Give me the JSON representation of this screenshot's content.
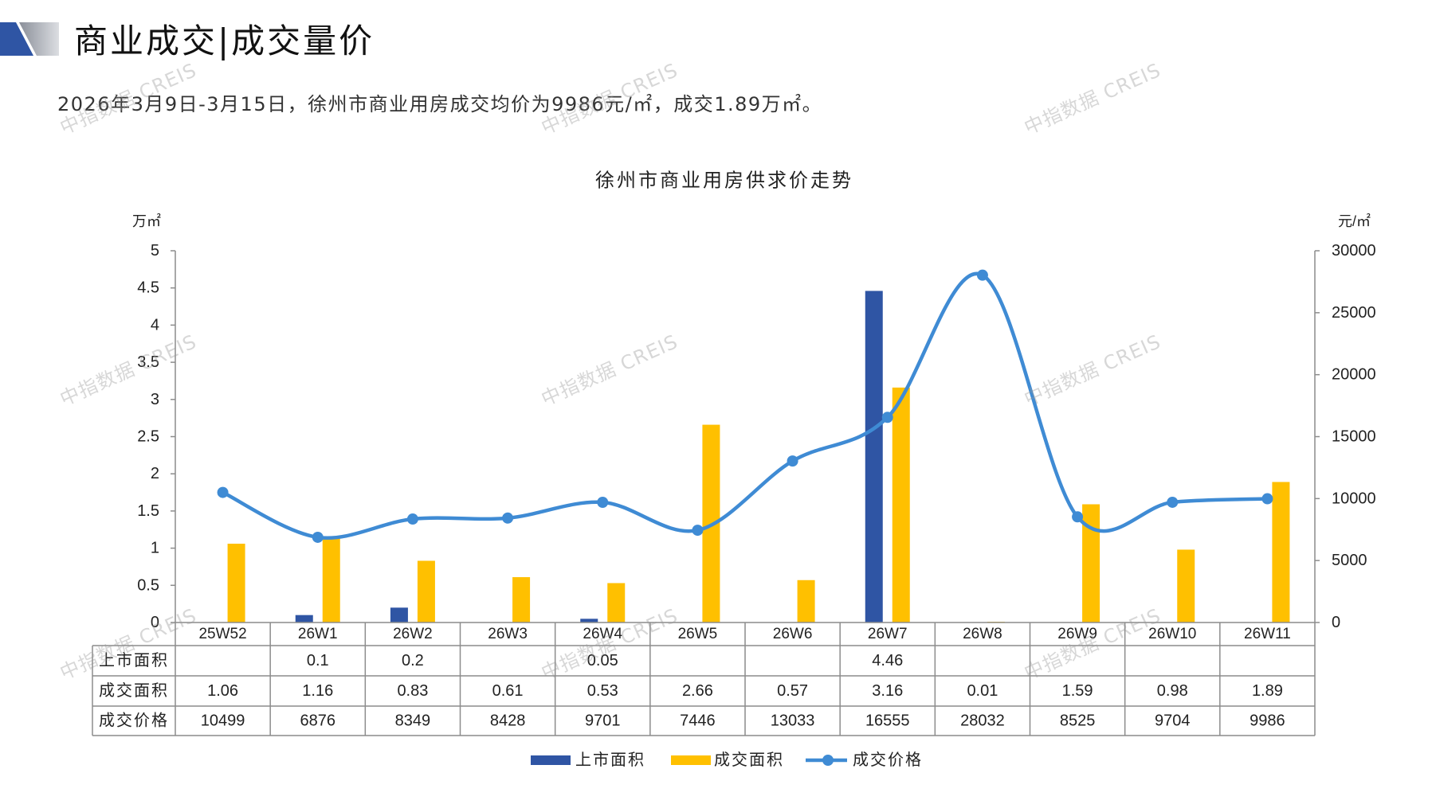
{
  "header": {
    "title": "商业成交|成交量价",
    "subtitle": "2026年3月9日-3月15日，徐州市商业用房成交均价为9986元/㎡，成交1.89万㎡。"
  },
  "watermark": "中指数据 CREIS",
  "chart_data": {
    "type": "bar",
    "title": "徐州市商业用房供求价走势",
    "ylabel": "万㎡",
    "y2label": "元/㎡",
    "ylim": [
      0,
      5
    ],
    "y2lim": [
      0,
      30000
    ],
    "y_ticks": [
      0,
      0.5,
      1,
      1.5,
      2,
      2.5,
      3,
      3.5,
      4,
      4.5,
      5
    ],
    "y2_ticks": [
      0,
      5000,
      10000,
      15000,
      20000,
      25000,
      30000
    ],
    "categories": [
      "25W52",
      "26W1",
      "26W2",
      "26W3",
      "26W4",
      "26W5",
      "26W6",
      "26W7",
      "26W8",
      "26W9",
      "26W10",
      "26W11"
    ],
    "series": [
      {
        "name": "上市面积",
        "type": "bar",
        "color": "#2F55A4",
        "values": [
          null,
          0.1,
          0.2,
          null,
          0.05,
          null,
          null,
          4.46,
          null,
          null,
          null,
          null
        ]
      },
      {
        "name": "成交面积",
        "type": "bar",
        "color": "#FFC000",
        "values": [
          1.06,
          1.16,
          0.83,
          0.61,
          0.53,
          2.66,
          0.57,
          3.16,
          0.01,
          1.59,
          0.98,
          1.89
        ]
      },
      {
        "name": "成交价格",
        "type": "line",
        "secondary_axis": true,
        "smooth": true,
        "markers": true,
        "color": "#3F8BD4",
        "values": [
          10499,
          6876,
          8349,
          8428,
          9701,
          7446,
          13033,
          16555,
          28032,
          8525,
          9704,
          9986
        ]
      }
    ],
    "legend": "bottom",
    "grid": false,
    "data_table": true
  }
}
